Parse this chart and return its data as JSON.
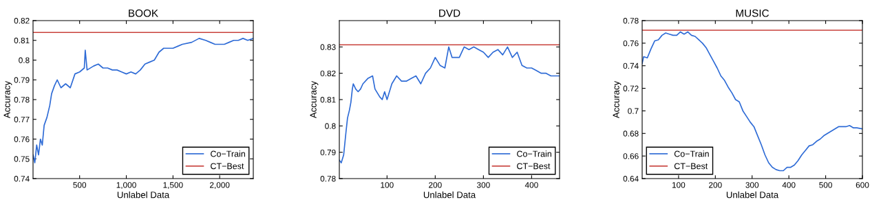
{
  "chart_data": [
    {
      "type": "line",
      "title": "BOOK",
      "xlabel": "Unlabel Data",
      "ylabel": "Accuracy",
      "xlim": [
        1,
        2360
      ],
      "ylim": [
        0.74,
        0.82
      ],
      "xticks": [
        500,
        {
          "value": 1000,
          "label": "1,000"
        },
        {
          "value": 1500,
          "label": "1,500"
        },
        {
          "value": 2000,
          "label": "2,000"
        }
      ],
      "yticks": [
        0.74,
        0.75,
        0.76,
        0.77,
        0.78,
        0.79,
        0.8,
        0.81,
        0.82
      ],
      "grid": false,
      "legend": "bottom right",
      "series": [
        {
          "name": "Co−Train",
          "color": "#2e6bd6",
          "x": [
            1,
            20,
            40,
            60,
            80,
            100,
            120,
            150,
            180,
            200,
            230,
            260,
            300,
            350,
            400,
            450,
            500,
            550,
            560,
            580,
            650,
            700,
            750,
            800,
            850,
            900,
            950,
            1000,
            1050,
            1100,
            1150,
            1200,
            1250,
            1300,
            1350,
            1400,
            1450,
            1500,
            1550,
            1600,
            1700,
            1780,
            1850,
            1900,
            1950,
            2000,
            2050,
            2100,
            2150,
            2200,
            2250,
            2300,
            2360
          ],
          "values": [
            0.752,
            0.748,
            0.757,
            0.752,
            0.76,
            0.757,
            0.767,
            0.771,
            0.777,
            0.783,
            0.787,
            0.79,
            0.786,
            0.788,
            0.786,
            0.793,
            0.794,
            0.796,
            0.805,
            0.795,
            0.797,
            0.798,
            0.796,
            0.796,
            0.795,
            0.795,
            0.794,
            0.793,
            0.794,
            0.793,
            0.795,
            0.798,
            0.799,
            0.8,
            0.804,
            0.806,
            0.806,
            0.806,
            0.807,
            0.808,
            0.809,
            0.811,
            0.81,
            0.809,
            0.808,
            0.808,
            0.808,
            0.809,
            0.81,
            0.81,
            0.811,
            0.81,
            0.811
          ]
        },
        {
          "name": "CT−Best",
          "color": "#c8413b",
          "x": [
            1,
            2360
          ],
          "values": [
            0.814,
            0.814
          ]
        }
      ]
    },
    {
      "type": "line",
      "title": "DVD",
      "xlabel": "Unlabel Data",
      "ylabel": "Accuracy",
      "xlim": [
        1,
        458
      ],
      "ylim": [
        0.78,
        0.84
      ],
      "xticks": [
        100,
        200,
        300,
        400
      ],
      "yticks": [
        0.78,
        0.79,
        0.8,
        0.81,
        0.82,
        0.83
      ],
      "grid": false,
      "legend": "bottom right",
      "series": [
        {
          "name": "Co−Train",
          "color": "#2e6bd6",
          "x": [
            1,
            5,
            10,
            15,
            18,
            22,
            25,
            28,
            30,
            35,
            40,
            45,
            50,
            60,
            70,
            75,
            85,
            90,
            95,
            100,
            110,
            120,
            130,
            140,
            150,
            160,
            170,
            180,
            190,
            200,
            210,
            220,
            228,
            235,
            250,
            260,
            270,
            280,
            290,
            300,
            310,
            320,
            330,
            340,
            350,
            360,
            370,
            380,
            390,
            400,
            410,
            420,
            430,
            440,
            450,
            458
          ],
          "values": [
            0.787,
            0.786,
            0.789,
            0.798,
            0.803,
            0.806,
            0.809,
            0.814,
            0.816,
            0.814,
            0.813,
            0.814,
            0.816,
            0.818,
            0.819,
            0.814,
            0.811,
            0.81,
            0.813,
            0.81,
            0.816,
            0.819,
            0.817,
            0.817,
            0.818,
            0.819,
            0.816,
            0.82,
            0.822,
            0.826,
            0.823,
            0.822,
            0.83,
            0.826,
            0.826,
            0.83,
            0.829,
            0.83,
            0.829,
            0.828,
            0.826,
            0.828,
            0.829,
            0.827,
            0.83,
            0.826,
            0.828,
            0.823,
            0.822,
            0.822,
            0.821,
            0.82,
            0.82,
            0.819,
            0.819,
            0.819
          ]
        },
        {
          "name": "CT−Best",
          "color": "#c8413b",
          "x": [
            1,
            458
          ],
          "values": [
            0.8308,
            0.8308
          ]
        }
      ]
    },
    {
      "type": "line",
      "title": "MUSIC",
      "xlabel": "Unlabel Data",
      "ylabel": "Accuracy",
      "xlim": [
        1,
        600
      ],
      "ylim": [
        0.64,
        0.78
      ],
      "xticks": [
        100,
        200,
        300,
        400,
        500,
        600
      ],
      "yticks": [
        0.64,
        0.66,
        0.68,
        0.7,
        0.72,
        0.74,
        0.76,
        0.78
      ],
      "grid": false,
      "legend": "bottom left",
      "series": [
        {
          "name": "Co−Train",
          "color": "#2e6bd6",
          "x": [
            1,
            5,
            15,
            25,
            35,
            45,
            55,
            65,
            75,
            85,
            95,
            105,
            115,
            125,
            135,
            145,
            155,
            165,
            175,
            185,
            195,
            205,
            215,
            225,
            235,
            245,
            255,
            265,
            275,
            285,
            295,
            305,
            315,
            325,
            335,
            345,
            355,
            365,
            375,
            385,
            395,
            405,
            415,
            425,
            435,
            445,
            455,
            465,
            475,
            485,
            495,
            505,
            515,
            525,
            535,
            545,
            555,
            565,
            575,
            585,
            600
          ],
          "values": [
            0.742,
            0.748,
            0.747,
            0.755,
            0.762,
            0.763,
            0.767,
            0.769,
            0.768,
            0.767,
            0.767,
            0.77,
            0.768,
            0.77,
            0.767,
            0.766,
            0.763,
            0.76,
            0.756,
            0.75,
            0.744,
            0.738,
            0.731,
            0.727,
            0.721,
            0.716,
            0.71,
            0.708,
            0.7,
            0.695,
            0.69,
            0.686,
            0.678,
            0.67,
            0.661,
            0.654,
            0.65,
            0.648,
            0.647,
            0.647,
            0.65,
            0.65,
            0.652,
            0.656,
            0.661,
            0.665,
            0.669,
            0.67,
            0.673,
            0.675,
            0.678,
            0.68,
            0.682,
            0.684,
            0.686,
            0.686,
            0.686,
            0.687,
            0.685,
            0.685,
            0.684
          ]
        },
        {
          "name": "CT−Best",
          "color": "#c8413b",
          "x": [
            1,
            600
          ],
          "values": [
            0.7715,
            0.7715
          ]
        }
      ]
    }
  ]
}
